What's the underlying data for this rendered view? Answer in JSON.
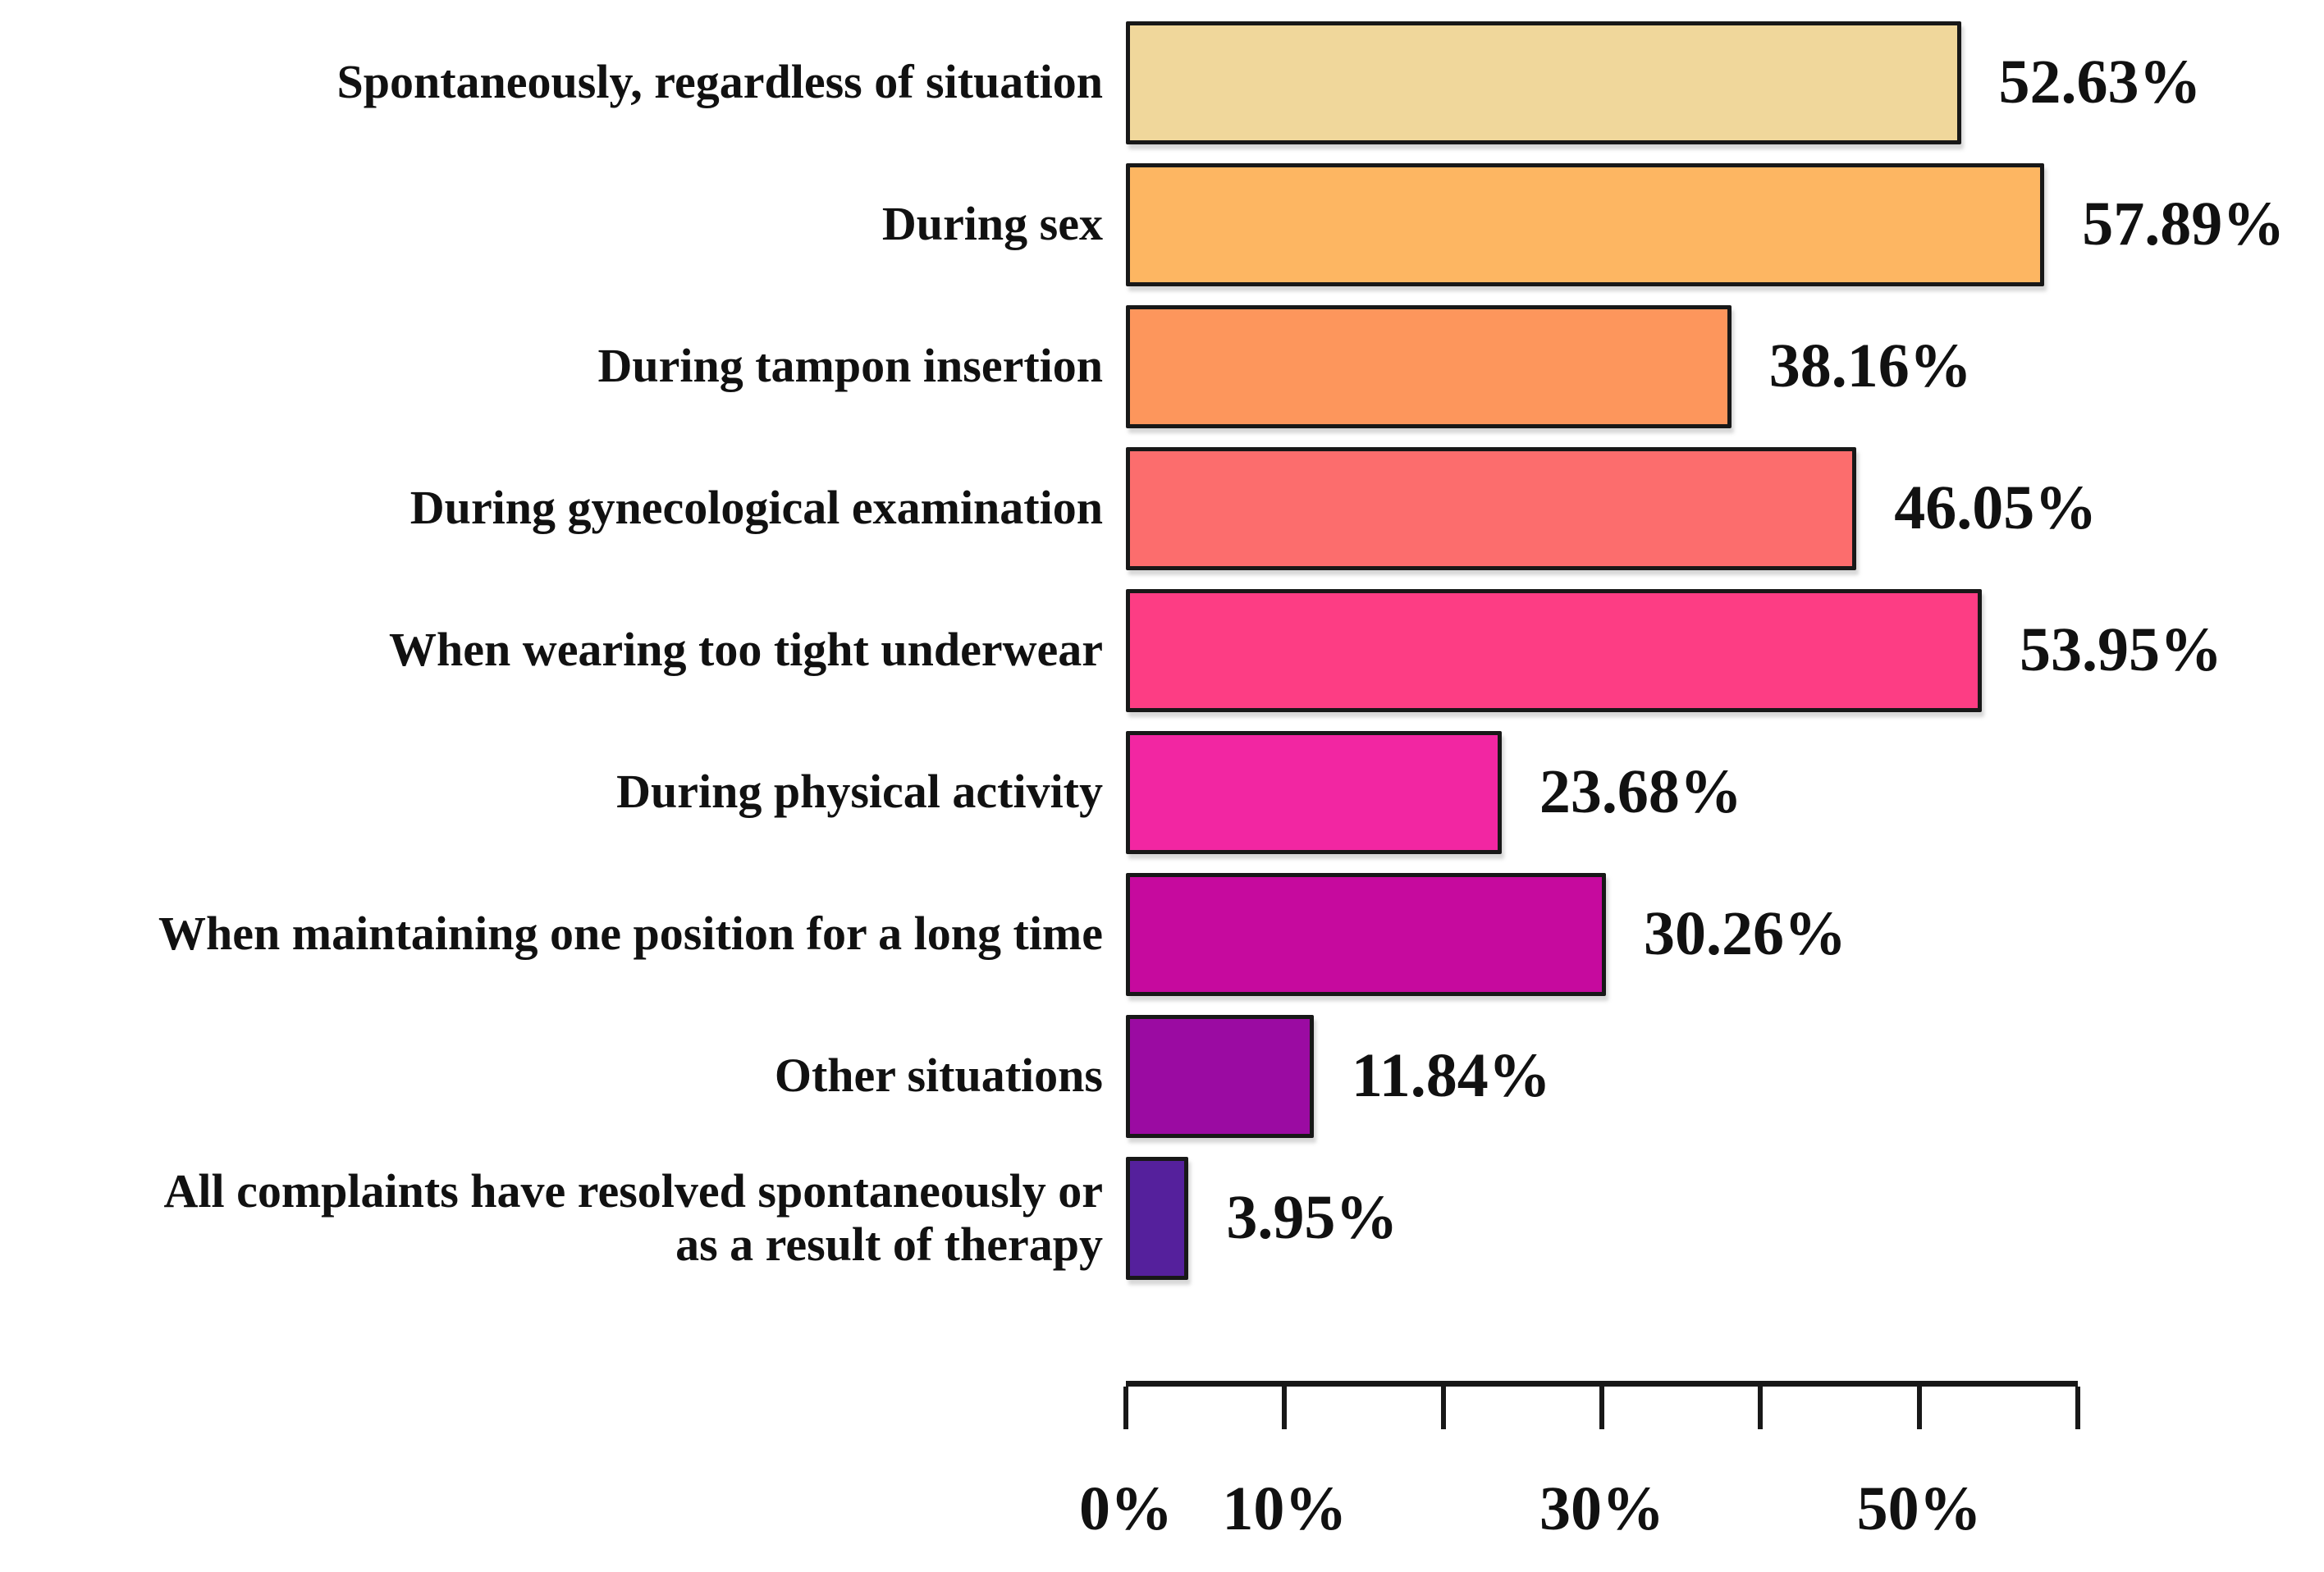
{
  "chart_data": {
    "type": "bar",
    "orientation": "horizontal",
    "title": "",
    "xlabel": "",
    "ylabel": "",
    "categories": [
      "Spontaneously, regardless of situation",
      "During sex",
      "During tampon insertion",
      "During gynecological examination",
      "When wearing too tight underwear",
      "During physical activity",
      "When maintaining one position for a long time",
      "Other situations",
      "All complaints have resolved spontaneously or\nas a result of therapy"
    ],
    "values": [
      52.63,
      57.89,
      38.16,
      46.05,
      53.95,
      23.68,
      30.26,
      11.84,
      3.95
    ],
    "value_labels": [
      "52.63%",
      "57.89%",
      "38.16%",
      "46.05%",
      "53.95%",
      "23.68%",
      "30.26%",
      "11.84%",
      "3.95%"
    ],
    "bar_colors": [
      "#f0d79b",
      "#fdb662",
      "#fd965c",
      "#fc6d6d",
      "#fd3d84",
      "#f226a2",
      "#c60a9e",
      "#9b0ba2",
      "#55209c"
    ],
    "bar_border_color": "#181818",
    "axis_color": "#181818",
    "text_color": "#111111",
    "xlim": [
      0,
      60
    ],
    "grid": false,
    "legend": false,
    "ticks": [
      {
        "value": 0,
        "label": "0%"
      },
      {
        "value": 10,
        "label": "10%"
      },
      {
        "value": 20,
        "label": ""
      },
      {
        "value": 30,
        "label": "30%"
      },
      {
        "value": 40,
        "label": ""
      },
      {
        "value": 50,
        "label": "50%"
      },
      {
        "value": 60,
        "label": ""
      }
    ]
  }
}
